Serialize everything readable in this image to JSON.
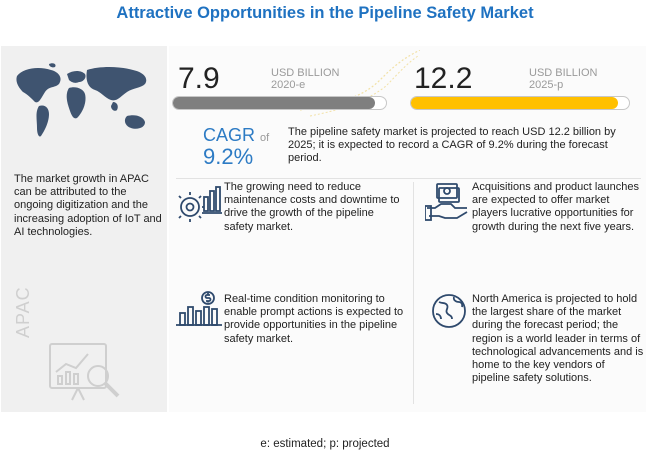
{
  "title": "Attractive Opportunities in the Pipeline Safety Market",
  "left_panel": {
    "map_icon": "world-map-icon",
    "text": "The market growth in APAC can be attributed to the ongoing digitization and the increasing adoption of IoT and AI technologies.",
    "region_label": "APAC",
    "region_icon": "analytics-magnifier-icon"
  },
  "metrics": {
    "current": {
      "value": "7.9",
      "unit": "USD BILLION",
      "period": "2020-e",
      "bar_color": "#7f7f7f"
    },
    "projected": {
      "value": "12.2",
      "unit": "USD BILLION",
      "period": "2025-p",
      "bar_color": "#ffc000"
    },
    "fill_fraction": 0.95
  },
  "cagr": {
    "label": "CAGR",
    "of": "of",
    "value": "9.2%",
    "description": "The pipeline safety market is projected to reach USD 12.2 billion by 2025; it is expected to record a CAGR of 9.2% during the forecast period.",
    "color": "#2d7bc4"
  },
  "insights": [
    {
      "icon": "gear-chart-icon",
      "text": "The growing need to reduce maintenance costs and downtime to drive the growth of the pipeline safety market."
    },
    {
      "icon": "handshake-money-icon",
      "text": "Acquisitions and product launches are expected to offer market players lucrative opportunities for growth during the next five years."
    },
    {
      "icon": "bar-chart-dollar-icon",
      "text": "Real-time condition monitoring to enable prompt actions is expected to provide opportunities in the pipeline safety market."
    },
    {
      "icon": "globe-icon",
      "text": "North America is projected to hold the largest share of the market during the forecast period; the region is a world leader in terms of technological advancements and is home to the key vendors of pipeline safety solutions."
    }
  ],
  "footnote": "e: estimated; p: projected",
  "colors": {
    "title": "#1f72c1",
    "panel": "#f0f0f0",
    "icon": "#2f4a6d"
  }
}
